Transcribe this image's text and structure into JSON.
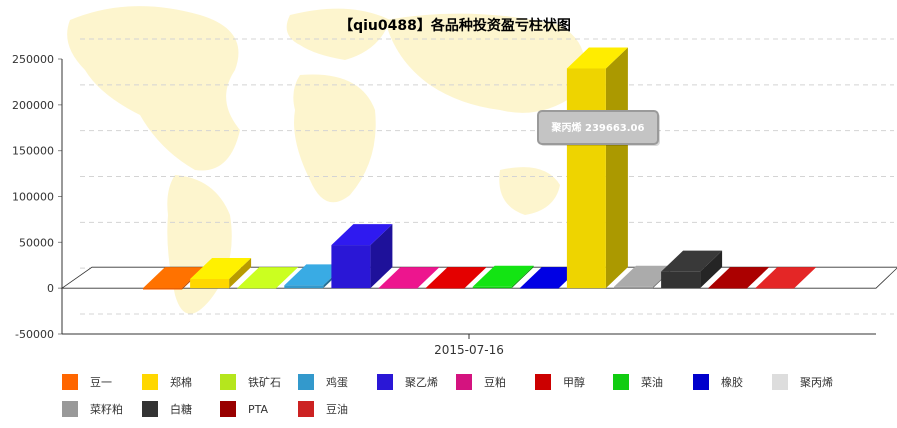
{
  "chart_data": {
    "type": "bar",
    "title": "【qiu0488】各品种投资盈亏柱状图",
    "categories": [
      "2015-07-16"
    ],
    "ylim": [
      -50000,
      250000
    ],
    "yticks": [
      "250000",
      "200000",
      "150000",
      "100000",
      "50000",
      "0",
      "-50000"
    ],
    "grid": true,
    "legend_position": "bottom",
    "series": [
      {
        "name": "豆一",
        "value": -1500,
        "color": "#ff6600"
      },
      {
        "name": "郑棉",
        "value": 10000,
        "color": "#ffd700"
      },
      {
        "name": "铁矿石",
        "value": 0,
        "color": "#b5e61d"
      },
      {
        "name": "鸡蛋",
        "value": 3000,
        "color": "#3399cc"
      },
      {
        "name": "聚乙烯",
        "value": 47000,
        "color": "#2a17d6"
      },
      {
        "name": "豆粕",
        "value": 0,
        "color": "#d4137f"
      },
      {
        "name": "甲醇",
        "value": 0,
        "color": "#cc0000"
      },
      {
        "name": "菜油",
        "value": 1500,
        "color": "#11cc11"
      },
      {
        "name": "橡胶",
        "value": 0,
        "color": "#0000cc"
      },
      {
        "name": "聚丙烯",
        "value": 239663.06,
        "color": "#dddddd",
        "bar_color": "#eed400"
      },
      {
        "name": "菜籽粕",
        "value": 1500,
        "color": "#999999"
      },
      {
        "name": "白糖",
        "value": 18000,
        "color": "#333333"
      },
      {
        "name": "PTA",
        "value": 0,
        "color": "#990000"
      },
      {
        "name": "豆油",
        "value": 0,
        "color": "#cc2222"
      }
    ],
    "tooltip": {
      "text": "聚丙烯 239663.06"
    }
  }
}
